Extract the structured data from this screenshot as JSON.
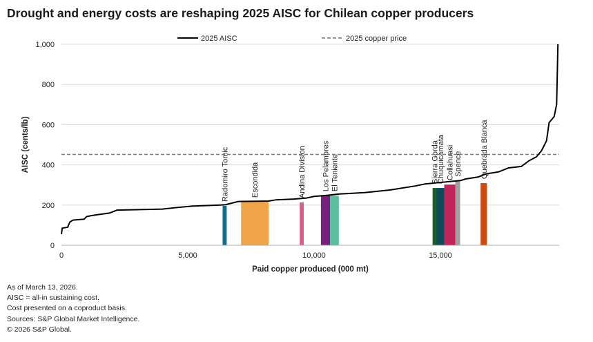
{
  "title": "Drought and energy costs are reshaping 2025 AISC for Chilean copper producers",
  "notes": [
    "As of March 13, 2026.",
    "AISC = all-in sustaining cost.",
    "Cost presented on a coproduct basis.",
    "Sources: S&P Global Market Intelligence.",
    "© 2026 S&P Global."
  ],
  "chart_data": {
    "type": "line",
    "title": "Drought and energy costs are reshaping 2025 AISC for Chilean copper producers",
    "xlabel": "Paid copper produced (000 mt)",
    "ylabel": "AISC (cents/lb)",
    "xlim": [
      0,
      19700
    ],
    "ylim": [
      0,
      1000
    ],
    "xticks": [
      0,
      5000,
      10000,
      15000
    ],
    "xtick_labels": [
      "0",
      "5,000",
      "10,000",
      "15,000"
    ],
    "yticks": [
      0,
      200,
      400,
      600,
      800,
      1000
    ],
    "ytick_labels": [
      "0",
      "200",
      "400",
      "600",
      "800",
      "1,000"
    ],
    "grid": "horizontal",
    "legend": "top-center",
    "series": [
      {
        "name": "2025 AISC",
        "color": "#000000",
        "points": [
          [
            0,
            55
          ],
          [
            30,
            85
          ],
          [
            250,
            90
          ],
          [
            330,
            115
          ],
          [
            450,
            125
          ],
          [
            900,
            130
          ],
          [
            1000,
            143
          ],
          [
            1300,
            150
          ],
          [
            1900,
            160
          ],
          [
            2200,
            175
          ],
          [
            4000,
            180
          ],
          [
            4600,
            188
          ],
          [
            5200,
            195
          ],
          [
            6300,
            200
          ],
          [
            6500,
            202
          ],
          [
            7000,
            218
          ],
          [
            8200,
            220
          ],
          [
            8500,
            226
          ],
          [
            9200,
            230
          ],
          [
            9700,
            235
          ],
          [
            10000,
            243
          ],
          [
            10500,
            248
          ],
          [
            11000,
            255
          ],
          [
            12000,
            262
          ],
          [
            13000,
            275
          ],
          [
            14000,
            295
          ],
          [
            14400,
            305
          ],
          [
            15800,
            322
          ],
          [
            16000,
            330
          ],
          [
            16500,
            340
          ],
          [
            16800,
            355
          ],
          [
            17300,
            365
          ],
          [
            17700,
            385
          ],
          [
            18200,
            392
          ],
          [
            18500,
            420
          ],
          [
            18800,
            440
          ],
          [
            19000,
            470
          ],
          [
            19200,
            520
          ],
          [
            19300,
            610
          ],
          [
            19500,
            640
          ],
          [
            19600,
            700
          ],
          [
            19650,
            1000
          ]
        ]
      },
      {
        "name": "2025 copper price",
        "color": "#777777",
        "dash": true,
        "value": 452
      }
    ],
    "highlighted_mines": [
      {
        "name": "Radomiro Tomic",
        "x0": 6380,
        "x1": 6540,
        "aisc": 196,
        "color": "#0e6e8c"
      },
      {
        "name": "Escondida",
        "x0": 7110,
        "x1": 8200,
        "aisc": 216,
        "color": "#f0a54a"
      },
      {
        "name": "Andina Division",
        "x0": 9430,
        "x1": 9590,
        "aisc": 213,
        "color": "#d4608a"
      },
      {
        "name": "Los Pelambres",
        "x0": 10270,
        "x1": 10630,
        "aisc": 247,
        "color": "#76217e"
      },
      {
        "name": "El Teniente",
        "x0": 10630,
        "x1": 10980,
        "aisc": 247,
        "color": "#5bbf9f"
      },
      {
        "name": "Sierra Gorda",
        "x0": 14690,
        "x1": 14850,
        "aisc": 285,
        "color": "#1a5e2c"
      },
      {
        "name": "Chuquicamata",
        "x0": 14850,
        "x1": 15150,
        "aisc": 285,
        "color": "#0c4a5c"
      },
      {
        "name": "Collahuasi",
        "x0": 15150,
        "x1": 15590,
        "aisc": 302,
        "color": "#c0245a"
      },
      {
        "name": "Spence",
        "x0": 15590,
        "x1": 15780,
        "aisc": 320,
        "color": "#a0a0a0"
      },
      {
        "name": "Quebrada Blanca",
        "x0": 16590,
        "x1": 16840,
        "aisc": 309,
        "color": "#d04a10"
      }
    ]
  }
}
